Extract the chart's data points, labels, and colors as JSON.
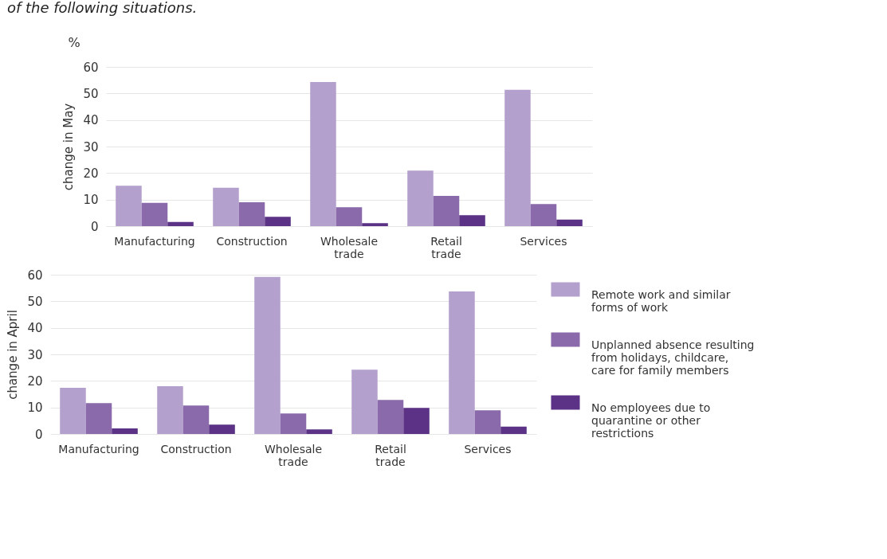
{
  "chart_data": [
    {
      "type": "bar",
      "title": "of the following situations.",
      "ylabel": "change in May",
      "annotations": [
        "%"
      ],
      "categories": [
        "Manufacturing",
        "Construction",
        "Wholesale trade",
        "Retail trade",
        "Services"
      ],
      "series": [
        {
          "color": "#b3a0cd",
          "values": [
            15.2,
            14.5,
            54.3,
            20.9,
            51.4
          ]
        },
        {
          "color": "#8a6aaa",
          "values": [
            8.8,
            9.0,
            7.1,
            11.4,
            8.3
          ]
        },
        {
          "color": "#5b3285",
          "values": [
            1.6,
            3.5,
            1.1,
            4.1,
            2.5
          ]
        }
      ],
      "ylim": [
        0,
        60
      ],
      "yticks": [
        0,
        10,
        20,
        30,
        40,
        50,
        60
      ],
      "grid": "y"
    },
    {
      "type": "bar",
      "ylabel": "change in April",
      "categories": [
        "Manufacturing",
        "Construction",
        "Wholesale trade",
        "Retail trade",
        "Services"
      ],
      "series": [
        {
          "name": "Remote work and similar forms of work",
          "color": "#b3a0cd",
          "values": [
            17.4,
            18.0,
            59.2,
            24.2,
            53.7
          ]
        },
        {
          "name": "Unplanned absence resulting from holidays, childcare, care for family members",
          "color": "#8a6aaa",
          "values": [
            11.6,
            10.7,
            7.7,
            12.8,
            8.9
          ]
        },
        {
          "name": "No employees due to quarantine or other restrictions",
          "color": "#5b3285",
          "values": [
            2.1,
            3.5,
            1.7,
            9.8,
            2.8
          ]
        }
      ],
      "ylim": [
        0,
        60
      ],
      "yticks": [
        0,
        10,
        20,
        30,
        40,
        50,
        60
      ],
      "grid": "y",
      "legend": "right"
    }
  ]
}
